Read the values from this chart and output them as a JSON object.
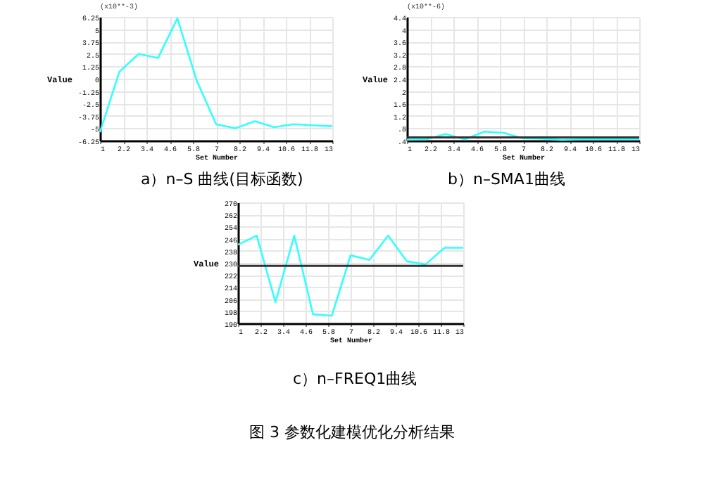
{
  "chart_data": [
    {
      "type": "line",
      "title": "a）n–S 曲线(目标函数)",
      "xlabel": "Set Number",
      "ylabel": "Value",
      "annotations": [
        "(x10**-3)"
      ],
      "x": [
        1,
        2,
        3,
        4,
        5,
        6,
        7,
        8,
        9,
        10,
        11,
        12,
        13
      ],
      "series": [
        {
          "color": "#33ffff",
          "values": [
            -5.4,
            0.7,
            2.5,
            2.1,
            6.1,
            -0.2,
            -4.6,
            -5,
            -4.3,
            -4.9,
            -4.6,
            -4.7,
            -4.8
          ]
        }
      ],
      "xlim": [
        1,
        13
      ],
      "xticks": [
        1,
        2.2,
        3.4,
        4.6,
        5.8,
        7,
        8.2,
        9.4,
        10.6,
        11.8,
        13
      ],
      "ylim": [
        -6.25,
        6.25
      ],
      "yticks": [
        -6.25,
        -5,
        -3.75,
        -2.5,
        -1.25,
        0,
        1.25,
        2.5,
        3.75,
        5,
        6.25
      ],
      "grid": true,
      "marker": "none",
      "line_style": "solid"
    },
    {
      "type": "line",
      "title": "b）n–SMA1曲线",
      "xlabel": "Set Number",
      "ylabel": "Value",
      "annotations": [
        "(x10**-6)"
      ],
      "x": [
        1,
        2,
        3,
        4,
        5,
        6,
        7,
        8,
        9,
        10,
        11,
        12,
        13
      ],
      "series": [
        {
          "color": "#33ffff",
          "values": [
            0.43,
            0.44,
            0.61,
            0.44,
            0.69,
            0.65,
            0.47,
            0.46,
            0.42,
            0.44,
            0.44,
            0.44,
            0.44
          ]
        }
      ],
      "ref_lines": [
        {
          "axis": "y",
          "value": 0.5,
          "color": "#333333"
        }
      ],
      "xlim": [
        1,
        13
      ],
      "xticks": [
        1,
        2.2,
        3.4,
        4.6,
        5.8,
        7,
        8.2,
        9.4,
        10.6,
        11.8,
        13
      ],
      "ylim": [
        0.4,
        4.4
      ],
      "yticks": [
        {
          "value": 0.4,
          "label": ".4"
        },
        {
          "value": 0.8,
          "label": ".8"
        },
        1.2,
        1.6,
        2,
        2.4,
        2.8,
        3.2,
        3.6,
        4,
        4.4
      ],
      "grid": true,
      "marker": "none",
      "line_style": "solid"
    },
    {
      "type": "line",
      "title": "c）n–FREQ1曲线",
      "subtitle": "图 3 参数化建模优化分析结果",
      "xlabel": "Set Number",
      "ylabel": "Value",
      "x": [
        1,
        2,
        3,
        4,
        5,
        6,
        7,
        8,
        9,
        10,
        11,
        12,
        13
      ],
      "series": [
        {
          "color": "#33ffff",
          "values": [
            242,
            248,
            204,
            248,
            196,
            195,
            235,
            232,
            248,
            231,
            229,
            240,
            240
          ]
        }
      ],
      "ref_lines": [
        {
          "axis": "y",
          "value": 228,
          "color": "#333333"
        }
      ],
      "xlim": [
        1,
        13
      ],
      "xticks": [
        1,
        2.2,
        3.4,
        4.6,
        5.8,
        7,
        8.2,
        9.4,
        10.6,
        11.8,
        13
      ],
      "ylim": [
        190,
        270
      ],
      "yticks": [
        190,
        198,
        206,
        214,
        222,
        230,
        238,
        246,
        254,
        262,
        270
      ],
      "grid": true,
      "marker": "none",
      "line_style": "solid"
    }
  ]
}
